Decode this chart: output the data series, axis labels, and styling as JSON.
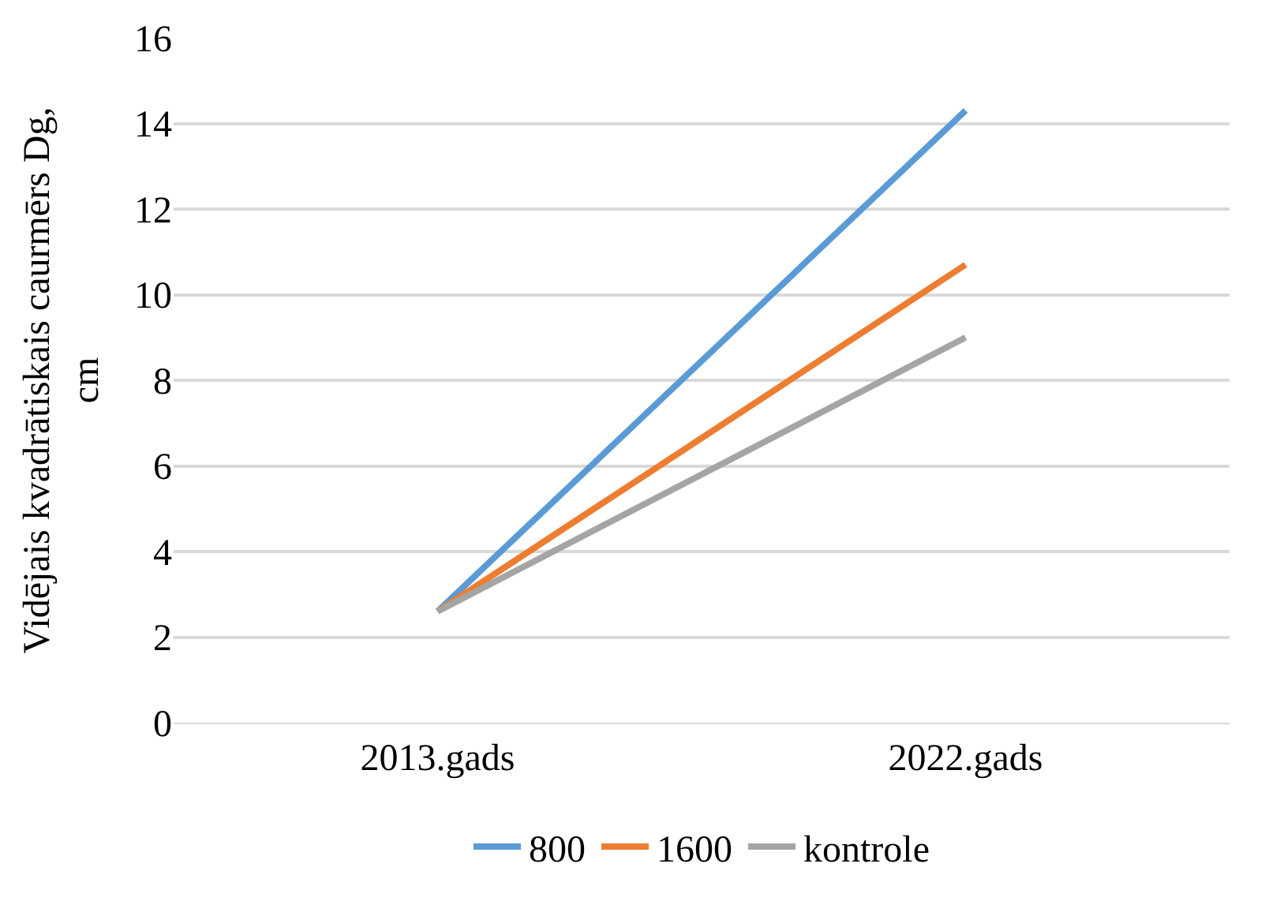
{
  "chart_data": {
    "type": "line",
    "ylabel": "Vidējais kvadrātiskais caurmērs Dg, cm",
    "categories": [
      "2013.gads",
      "2022.gads"
    ],
    "series": [
      {
        "name": "800",
        "color": "#5b9bd5",
        "values": [
          2.6,
          14.3
        ]
      },
      {
        "name": "1600",
        "color": "#ed7d31",
        "values": [
          2.6,
          10.7
        ]
      },
      {
        "name": "kontrole",
        "color": "#a5a5a5",
        "values": [
          2.6,
          9.0
        ]
      }
    ],
    "ylim": [
      0,
      16
    ],
    "yticks": [
      0,
      2,
      4,
      6,
      8,
      10,
      12,
      14,
      16
    ],
    "grid": "y",
    "legend": "bottom",
    "marker": "none",
    "line_style": "solid"
  }
}
